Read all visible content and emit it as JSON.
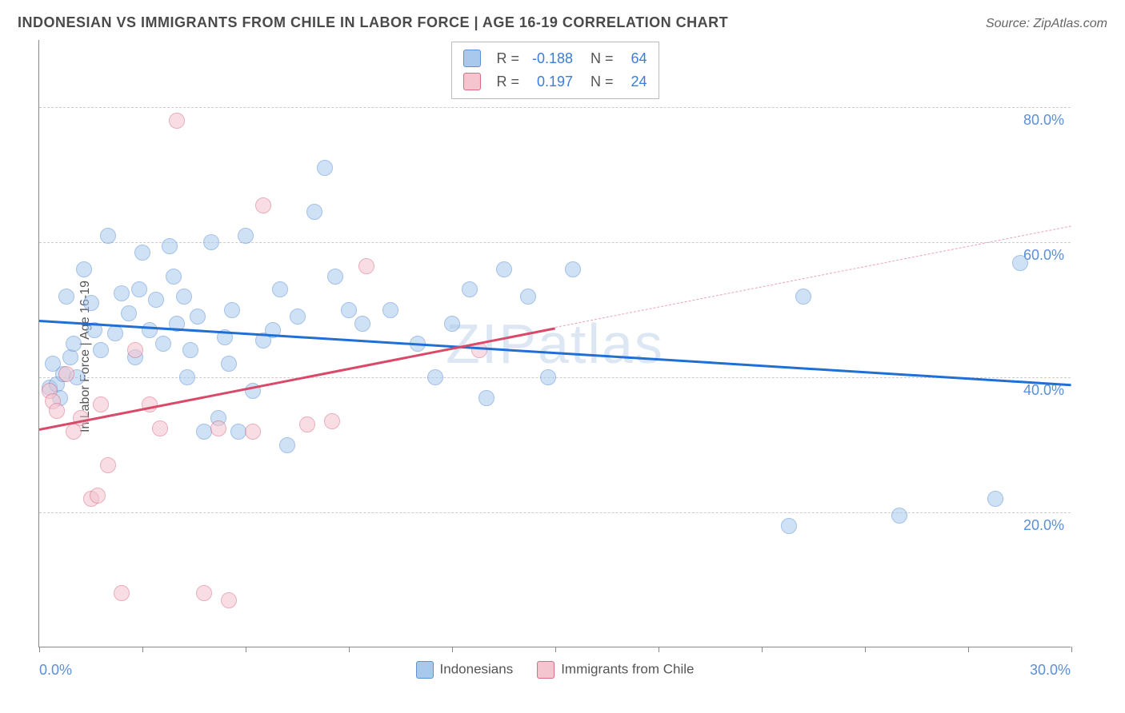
{
  "title": "INDONESIAN VS IMMIGRANTS FROM CHILE IN LABOR FORCE | AGE 16-19 CORRELATION CHART",
  "source": "Source: ZipAtlas.com",
  "watermark": "ZIPatlas",
  "ylabel": "In Labor Force | Age 16-19",
  "chart": {
    "type": "scatter",
    "xlim": [
      0,
      30
    ],
    "ylim": [
      0,
      90
    ],
    "ytick_positions": [
      20,
      40,
      60,
      80
    ],
    "ytick_labels": [
      "20.0%",
      "40.0%",
      "60.0%",
      "80.0%"
    ],
    "ytick_color": "#5b8fd6",
    "xtick_positions": [
      0,
      3,
      6,
      9,
      12,
      15,
      18,
      21,
      24,
      27,
      30
    ],
    "xtick_labels_shown": {
      "0": "0.0%",
      "30": "30.0%"
    },
    "xtick_color": "#5b8fd6",
    "grid_color": "#cccccc",
    "background_color": "#ffffff",
    "point_radius": 10,
    "point_opacity": 0.55,
    "series": [
      {
        "name": "Indonesians",
        "fill": "#a9c9ec",
        "stroke": "#5b8fd6",
        "trend": {
          "x1": 0,
          "y1": 48.5,
          "x2": 30,
          "y2": 39.0,
          "color": "#1f6fd6",
          "width": 3,
          "dash": false
        },
        "R": "-0.188",
        "N": "64",
        "points": [
          [
            0.3,
            38.5
          ],
          [
            0.4,
            42
          ],
          [
            0.5,
            39
          ],
          [
            0.6,
            37
          ],
          [
            0.7,
            40.5
          ],
          [
            0.8,
            52
          ],
          [
            0.9,
            43
          ],
          [
            1.0,
            45
          ],
          [
            1.1,
            40
          ],
          [
            1.3,
            56
          ],
          [
            1.5,
            51
          ],
          [
            1.6,
            47
          ],
          [
            1.8,
            44
          ],
          [
            2.0,
            61
          ],
          [
            2.2,
            46.5
          ],
          [
            2.4,
            52.5
          ],
          [
            2.6,
            49.5
          ],
          [
            2.8,
            43
          ],
          [
            3.0,
            58.5
          ],
          [
            3.2,
            47
          ],
          [
            3.4,
            51.5
          ],
          [
            3.6,
            45
          ],
          [
            3.8,
            59.5
          ],
          [
            4.0,
            48
          ],
          [
            4.2,
            52
          ],
          [
            4.4,
            44
          ],
          [
            4.6,
            49
          ],
          [
            4.8,
            32
          ],
          [
            5.0,
            60
          ],
          [
            5.2,
            34
          ],
          [
            5.4,
            46
          ],
          [
            5.6,
            50
          ],
          [
            5.8,
            32
          ],
          [
            6.0,
            61
          ],
          [
            6.2,
            38
          ],
          [
            6.5,
            45.5
          ],
          [
            7.0,
            53
          ],
          [
            7.2,
            30
          ],
          [
            7.5,
            49
          ],
          [
            8.0,
            64.5
          ],
          [
            8.3,
            71
          ],
          [
            8.6,
            55
          ],
          [
            9.0,
            50
          ],
          [
            9.4,
            48
          ],
          [
            10.2,
            50
          ],
          [
            11.0,
            45
          ],
          [
            11.5,
            40
          ],
          [
            12.0,
            48
          ],
          [
            12.5,
            53
          ],
          [
            13.0,
            37
          ],
          [
            13.5,
            56
          ],
          [
            14.2,
            52
          ],
          [
            14.8,
            40
          ],
          [
            15.5,
            56
          ],
          [
            21.8,
            18
          ],
          [
            22.2,
            52
          ],
          [
            25.0,
            19.5
          ],
          [
            27.8,
            22
          ],
          [
            28.5,
            57
          ],
          [
            3.9,
            55
          ],
          [
            6.8,
            47
          ],
          [
            4.3,
            40
          ],
          [
            5.5,
            42
          ],
          [
            2.9,
            53
          ]
        ]
      },
      {
        "name": "Immigrants from Chile",
        "fill": "#f4c4cf",
        "stroke": "#d96b85",
        "trend_solid": {
          "x1": 0,
          "y1": 32.5,
          "x2": 15,
          "y2": 47.5,
          "color": "#d94a6a",
          "width": 3
        },
        "trend_dash": {
          "x1": 15,
          "y1": 47.5,
          "x2": 30,
          "y2": 62.5,
          "color": "#e8a5b3",
          "width": 1.5
        },
        "R": "0.197",
        "N": "24",
        "points": [
          [
            0.3,
            38
          ],
          [
            0.4,
            36.5
          ],
          [
            0.5,
            35
          ],
          [
            0.8,
            40.5
          ],
          [
            1.0,
            32
          ],
          [
            1.2,
            34
          ],
          [
            1.5,
            22
          ],
          [
            1.7,
            22.5
          ],
          [
            1.8,
            36
          ],
          [
            2.0,
            27
          ],
          [
            2.4,
            8
          ],
          [
            2.8,
            44
          ],
          [
            3.2,
            36
          ],
          [
            3.5,
            32.5
          ],
          [
            4.0,
            78
          ],
          [
            4.8,
            8
          ],
          [
            5.2,
            32.5
          ],
          [
            5.5,
            7
          ],
          [
            6.2,
            32
          ],
          [
            6.5,
            65.5
          ],
          [
            7.8,
            33
          ],
          [
            8.5,
            33.5
          ],
          [
            9.5,
            56.5
          ],
          [
            12.8,
            44
          ]
        ]
      }
    ]
  },
  "legend": {
    "items": [
      {
        "label": "Indonesians",
        "fill": "#a9c9ec",
        "stroke": "#5b8fd6"
      },
      {
        "label": "Immigrants from Chile",
        "fill": "#f4c4cf",
        "stroke": "#d96b85"
      }
    ]
  },
  "stat_value_color": "#3b7dd8"
}
